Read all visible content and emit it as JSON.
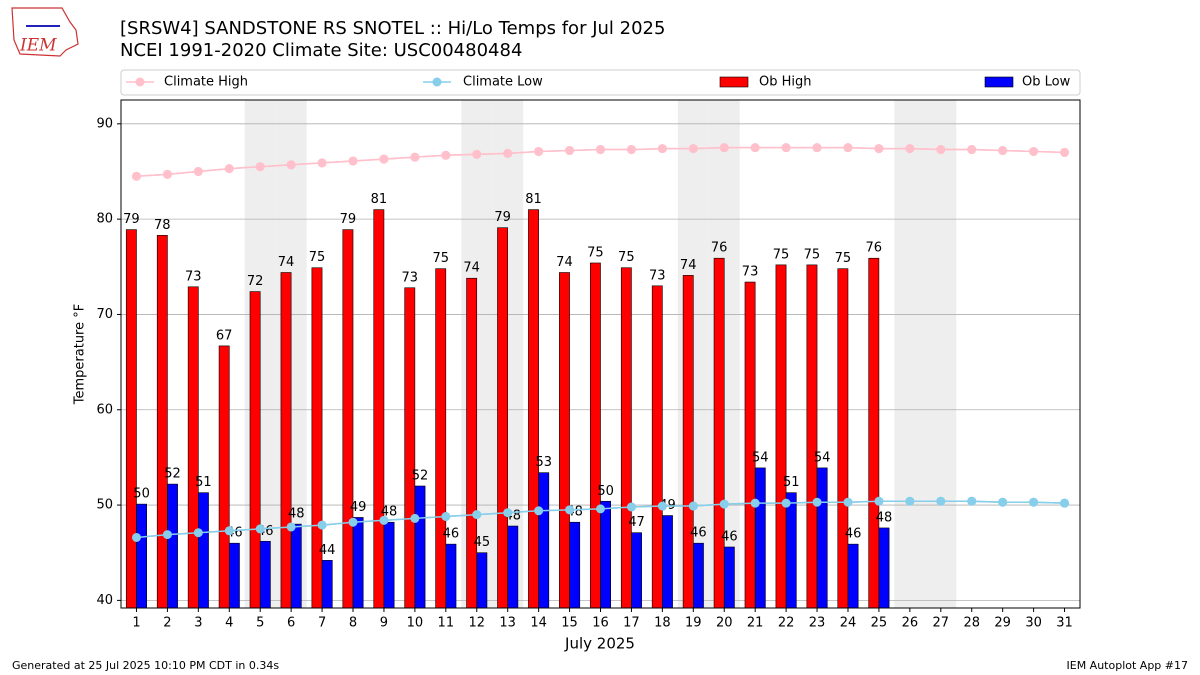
{
  "chart_data": {
    "type": "bar",
    "title": "[SRSW4] SANDSTONE RS SNOTEL :: Hi/Lo Temps for Jul 2025",
    "subtitle": "NCEI 1991-2020 Climate Site: USC00480484",
    "ylabel": "Temperature °F",
    "xlabel": "July 2025",
    "logo": "IEM",
    "footer_left": "Generated at 25 Jul 2025 10:10 PM CDT in 0.34s",
    "footer_right": "IEM Autoplot App #17",
    "categories": [
      "1",
      "2",
      "3",
      "4",
      "5",
      "6",
      "7",
      "8",
      "9",
      "10",
      "11",
      "12",
      "13",
      "14",
      "15",
      "16",
      "17",
      "18",
      "19",
      "20",
      "21",
      "22",
      "23",
      "24",
      "25",
      "26",
      "27",
      "28",
      "29",
      "30",
      "31"
    ],
    "shaded_days": [
      "5",
      "6",
      "12",
      "13",
      "19",
      "20",
      "26",
      "27"
    ],
    "ylim": [
      39.2,
      92.5
    ],
    "yticks": [
      40,
      50,
      60,
      70,
      80,
      90
    ],
    "grid": true,
    "legend": "top",
    "series": [
      {
        "name": "Climate High",
        "type": "line",
        "color": "#ffc0cb",
        "values": [
          84.5,
          84.7,
          85.0,
          85.3,
          85.5,
          85.7,
          85.9,
          86.1,
          86.3,
          86.5,
          86.7,
          86.8,
          86.9,
          87.1,
          87.2,
          87.3,
          87.3,
          87.4,
          87.4,
          87.5,
          87.5,
          87.5,
          87.5,
          87.5,
          87.4,
          87.4,
          87.3,
          87.3,
          87.2,
          87.1,
          87.0
        ]
      },
      {
        "name": "Climate Low",
        "type": "line",
        "color": "#87ceeb",
        "values": [
          46.6,
          46.9,
          47.1,
          47.3,
          47.5,
          47.7,
          47.9,
          48.2,
          48.4,
          48.6,
          48.8,
          49.0,
          49.2,
          49.4,
          49.5,
          49.6,
          49.8,
          49.9,
          49.9,
          50.1,
          50.2,
          50.2,
          50.3,
          50.3,
          50.4,
          50.4,
          50.4,
          50.4,
          50.3,
          50.3,
          50.2
        ]
      },
      {
        "name": "Ob High",
        "type": "bar",
        "color": "#ff0000",
        "values": [
          78.9,
          78.3,
          72.9,
          66.7,
          72.4,
          74.4,
          74.9,
          78.9,
          81.0,
          72.8,
          74.8,
          73.8,
          79.1,
          81.0,
          74.4,
          75.4,
          74.9,
          73.0,
          74.1,
          75.9,
          73.4,
          75.2,
          75.2,
          74.8,
          75.9,
          null,
          null,
          null,
          null,
          null,
          null
        ],
        "value_labels": [
          "79",
          "78",
          "73",
          "67",
          "72",
          "74",
          "75",
          "79",
          "81",
          "73",
          "75",
          "74",
          "79",
          "81",
          "74",
          "75",
          "75",
          "73",
          "74",
          "76",
          "73",
          "75",
          "75",
          "75",
          "76",
          null,
          null,
          null,
          null,
          null,
          null
        ]
      },
      {
        "name": "Ob Low",
        "type": "bar",
        "color": "#0000ff",
        "values": [
          50.1,
          52.2,
          51.3,
          46.0,
          46.2,
          48.0,
          44.2,
          48.7,
          48.2,
          52.0,
          45.9,
          45.0,
          47.8,
          53.4,
          48.2,
          50.4,
          47.1,
          48.9,
          46.0,
          45.6,
          53.9,
          51.3,
          53.9,
          45.9,
          47.6,
          null,
          null,
          null,
          null,
          null,
          null
        ],
        "value_labels": [
          "50",
          "52",
          "51",
          "46",
          "46",
          "48",
          "44",
          "49",
          "48",
          "52",
          "46",
          "45",
          "48",
          "53",
          "48",
          "50",
          "47",
          "49",
          "46",
          "46",
          "54",
          "51",
          "54",
          "46",
          "48",
          null,
          null,
          null,
          null,
          null,
          null
        ]
      }
    ]
  }
}
